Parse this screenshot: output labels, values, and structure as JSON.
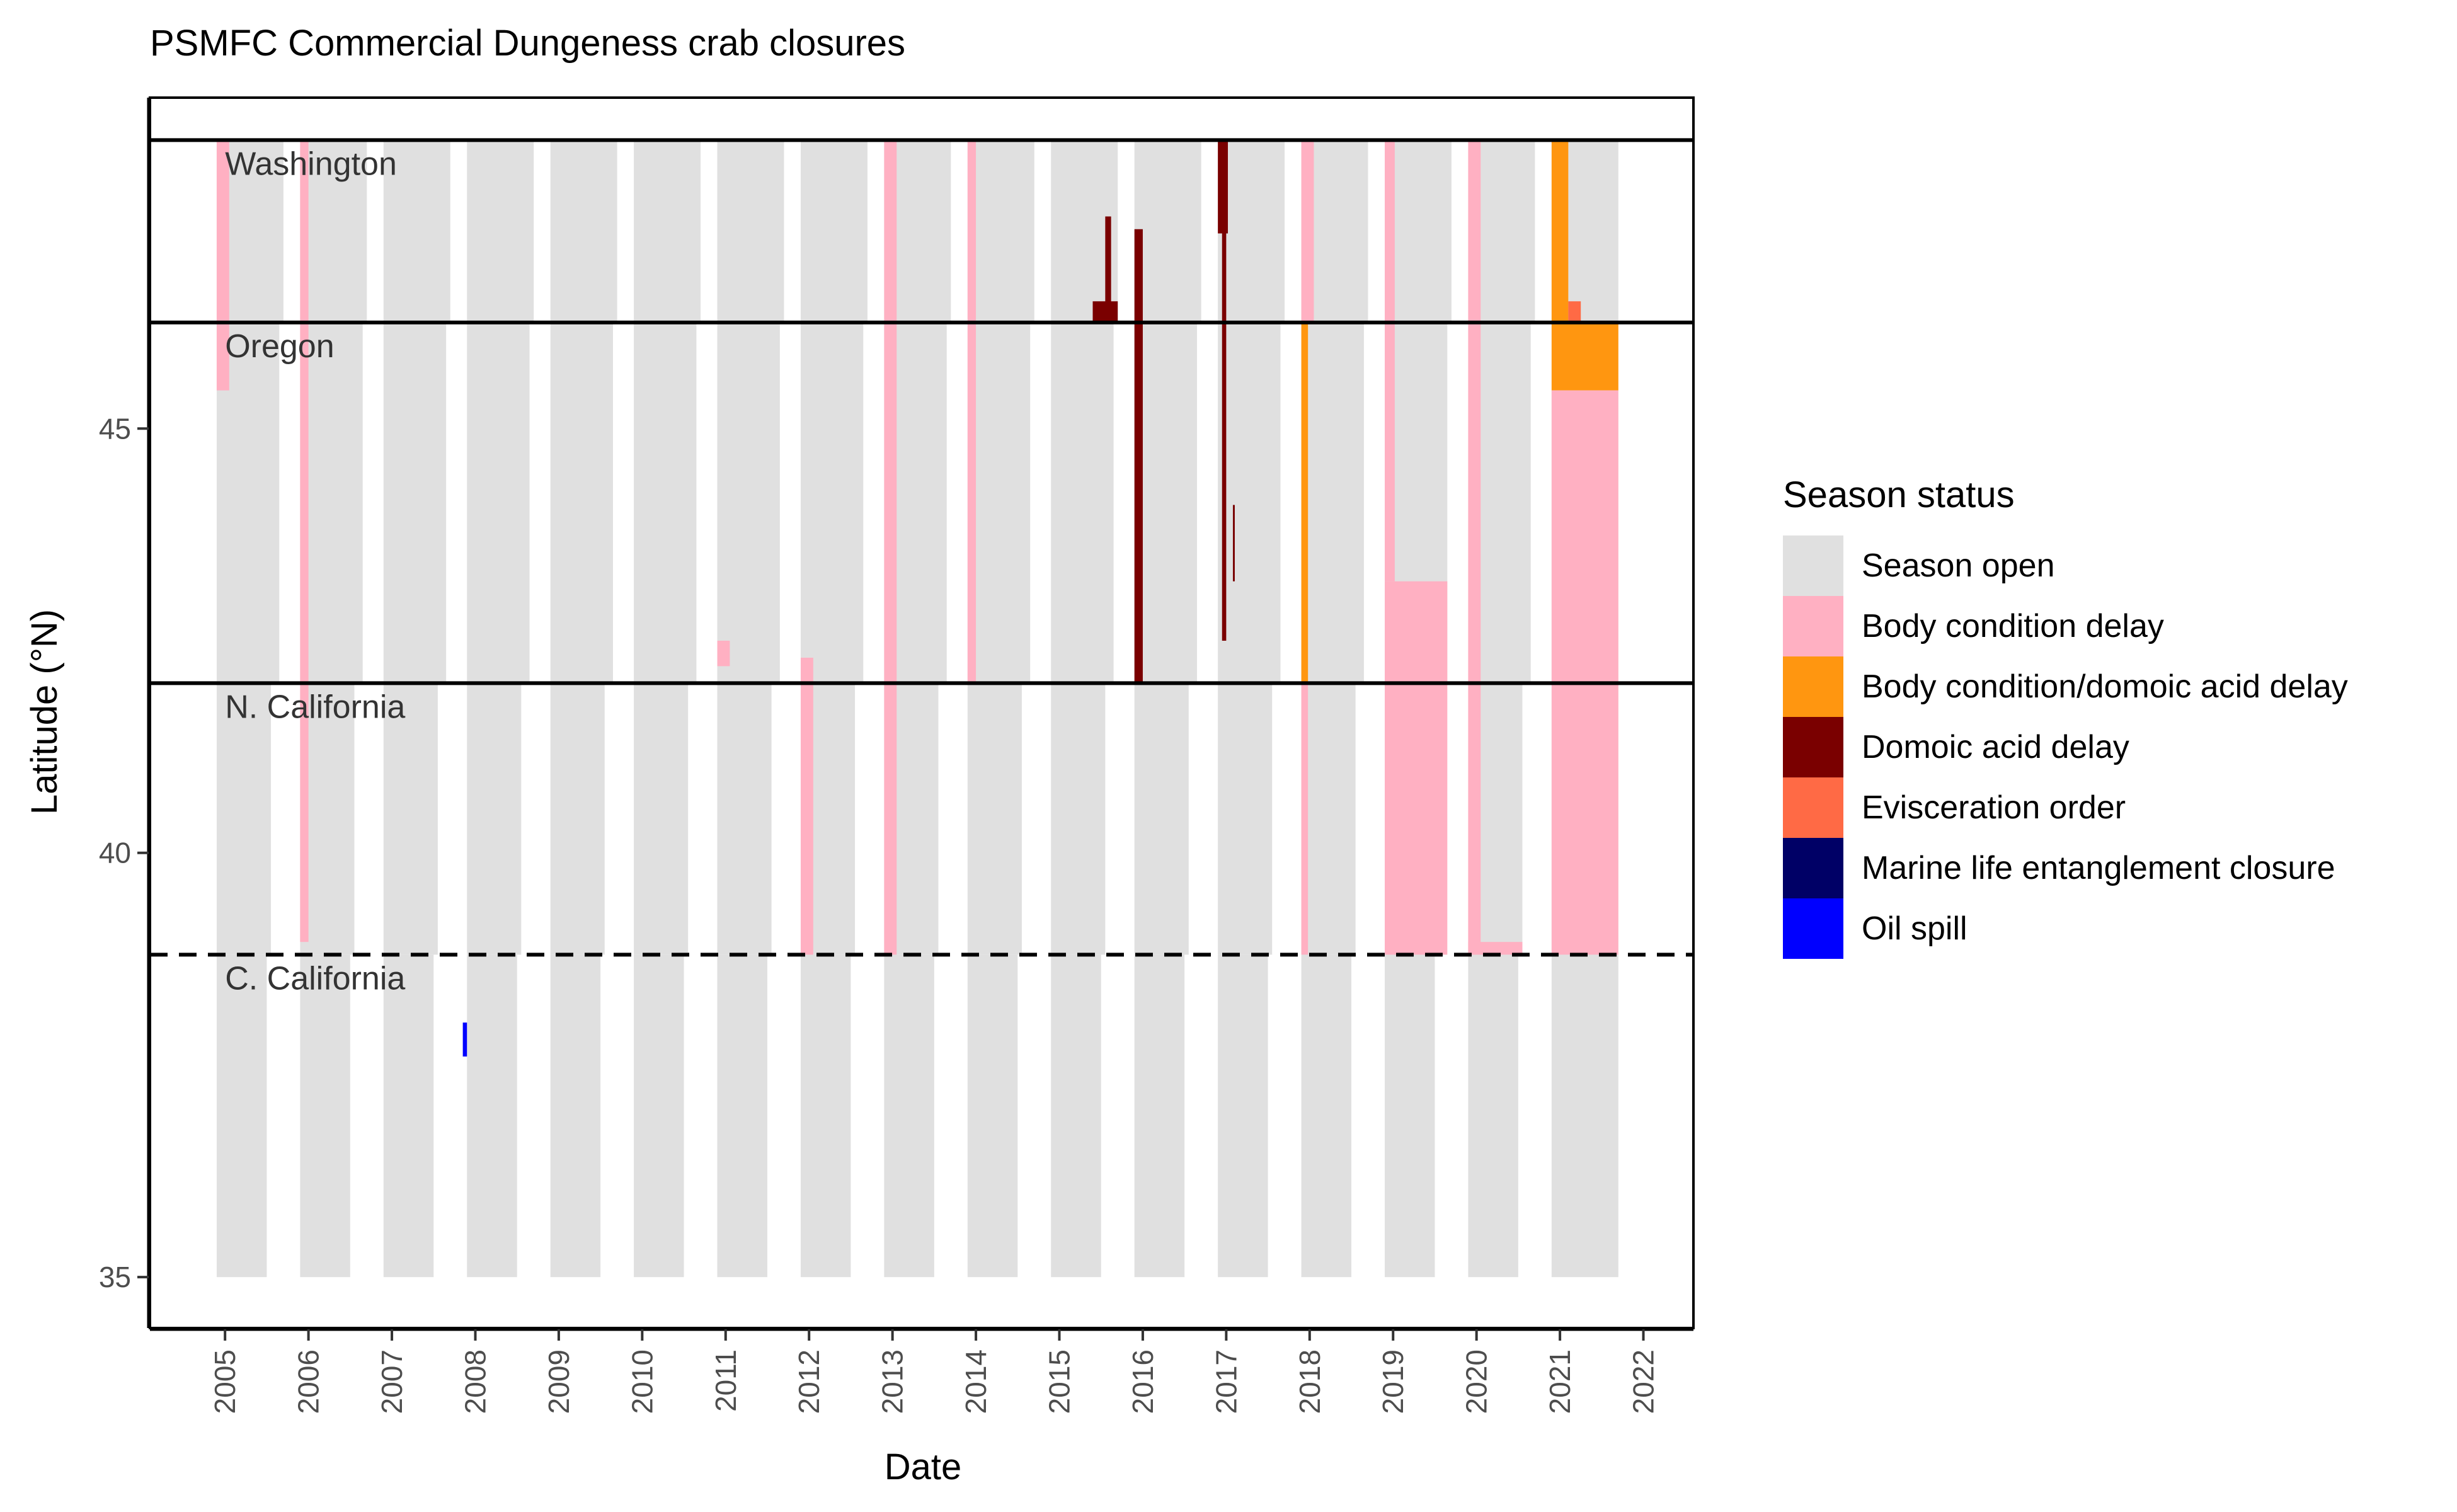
{
  "chart_data": {
    "type": "heatmap",
    "title": "PSMFC Commercial Dungeness crab closures",
    "xlabel": "Date",
    "ylabel": "Latitude (°N)",
    "x_unit": "year",
    "xlim": [
      2004.1,
      2022.6
    ],
    "ylim": [
      34.4,
      48.9
    ],
    "x_ticks": [
      "2005",
      "2006",
      "2007",
      "2008",
      "2009",
      "2010",
      "2011",
      "2012",
      "2013",
      "2014",
      "2015",
      "2016",
      "2017",
      "2018",
      "2019",
      "2020",
      "2021",
      "2022"
    ],
    "y_ticks": [
      "35",
      "40",
      "45"
    ],
    "legend": {
      "title": "Season status",
      "position": "right",
      "entries": [
        {
          "label": "Season open",
          "color": "#E0E0E0"
        },
        {
          "label": "Body condition delay",
          "color": "#FFB0C2"
        },
        {
          "label": "Body condition/domoic acid delay",
          "color": "#FF9610"
        },
        {
          "label": "Domoic acid delay",
          "color": "#7A0000"
        },
        {
          "label": "Evisceration order",
          "color": "#FF6A45"
        },
        {
          "label": "Marine life entanglement closure",
          "color": "#000066"
        },
        {
          "label": "Oil spill",
          "color": "#0000FF"
        }
      ]
    },
    "regions": [
      {
        "label": "Washington",
        "lat": 48.4,
        "line": "solid"
      },
      {
        "label": "Oregon",
        "lat": 46.25,
        "line": "solid"
      },
      {
        "label": "N. California",
        "lat": 42.0,
        "line": "solid"
      },
      {
        "label": "C. California",
        "lat": 38.8,
        "line": "dashed"
      }
    ],
    "open_seasons": [
      {
        "start": 2004.9,
        "end": 2005.7,
        "lat_min": 46.25,
        "lat_max": 48.4
      },
      {
        "start": 2004.9,
        "end": 2005.65,
        "lat_min": 42.0,
        "lat_max": 46.25
      },
      {
        "start": 2004.9,
        "end": 2005.55,
        "lat_min": 38.8,
        "lat_max": 42.0
      },
      {
        "start": 2004.9,
        "end": 2005.5,
        "lat_min": 35.0,
        "lat_max": 38.8
      },
      {
        "start": 2005.9,
        "end": 2006.7,
        "lat_min": 46.25,
        "lat_max": 48.4
      },
      {
        "start": 2005.9,
        "end": 2006.65,
        "lat_min": 42.0,
        "lat_max": 46.25
      },
      {
        "start": 2005.9,
        "end": 2006.55,
        "lat_min": 38.8,
        "lat_max": 42.0
      },
      {
        "start": 2005.9,
        "end": 2006.5,
        "lat_min": 35.0,
        "lat_max": 38.8
      },
      {
        "start": 2006.9,
        "end": 2007.7,
        "lat_min": 46.25,
        "lat_max": 48.4
      },
      {
        "start": 2006.9,
        "end": 2007.65,
        "lat_min": 42.0,
        "lat_max": 46.25
      },
      {
        "start": 2006.9,
        "end": 2007.55,
        "lat_min": 38.8,
        "lat_max": 42.0
      },
      {
        "start": 2006.9,
        "end": 2007.5,
        "lat_min": 35.0,
        "lat_max": 38.8
      },
      {
        "start": 2007.9,
        "end": 2008.7,
        "lat_min": 46.25,
        "lat_max": 48.4
      },
      {
        "start": 2007.9,
        "end": 2008.65,
        "lat_min": 42.0,
        "lat_max": 46.25
      },
      {
        "start": 2007.9,
        "end": 2008.55,
        "lat_min": 38.8,
        "lat_max": 42.0
      },
      {
        "start": 2007.9,
        "end": 2008.5,
        "lat_min": 35.0,
        "lat_max": 38.8
      },
      {
        "start": 2008.9,
        "end": 2009.7,
        "lat_min": 46.25,
        "lat_max": 48.4
      },
      {
        "start": 2008.9,
        "end": 2009.65,
        "lat_min": 42.0,
        "lat_max": 46.25
      },
      {
        "start": 2008.9,
        "end": 2009.55,
        "lat_min": 38.8,
        "lat_max": 42.0
      },
      {
        "start": 2008.9,
        "end": 2009.5,
        "lat_min": 35.0,
        "lat_max": 38.8
      },
      {
        "start": 2009.9,
        "end": 2010.7,
        "lat_min": 46.25,
        "lat_max": 48.4
      },
      {
        "start": 2009.9,
        "end": 2010.65,
        "lat_min": 42.0,
        "lat_max": 46.25
      },
      {
        "start": 2009.9,
        "end": 2010.55,
        "lat_min": 38.8,
        "lat_max": 42.0
      },
      {
        "start": 2009.9,
        "end": 2010.5,
        "lat_min": 35.0,
        "lat_max": 38.8
      },
      {
        "start": 2010.9,
        "end": 2011.7,
        "lat_min": 46.25,
        "lat_max": 48.4
      },
      {
        "start": 2010.9,
        "end": 2011.65,
        "lat_min": 42.0,
        "lat_max": 46.25
      },
      {
        "start": 2010.9,
        "end": 2011.55,
        "lat_min": 38.8,
        "lat_max": 42.0
      },
      {
        "start": 2010.9,
        "end": 2011.5,
        "lat_min": 35.0,
        "lat_max": 38.8
      },
      {
        "start": 2011.9,
        "end": 2012.7,
        "lat_min": 46.25,
        "lat_max": 48.4
      },
      {
        "start": 2011.9,
        "end": 2012.65,
        "lat_min": 42.0,
        "lat_max": 46.25
      },
      {
        "start": 2011.9,
        "end": 2012.55,
        "lat_min": 38.8,
        "lat_max": 42.0
      },
      {
        "start": 2011.9,
        "end": 2012.5,
        "lat_min": 35.0,
        "lat_max": 38.8
      },
      {
        "start": 2012.9,
        "end": 2013.7,
        "lat_min": 46.25,
        "lat_max": 48.4
      },
      {
        "start": 2012.9,
        "end": 2013.65,
        "lat_min": 42.0,
        "lat_max": 46.25
      },
      {
        "start": 2012.9,
        "end": 2013.55,
        "lat_min": 38.8,
        "lat_max": 42.0
      },
      {
        "start": 2012.9,
        "end": 2013.5,
        "lat_min": 35.0,
        "lat_max": 38.8
      },
      {
        "start": 2013.9,
        "end": 2014.7,
        "lat_min": 46.25,
        "lat_max": 48.4
      },
      {
        "start": 2013.9,
        "end": 2014.65,
        "lat_min": 42.0,
        "lat_max": 46.25
      },
      {
        "start": 2013.9,
        "end": 2014.55,
        "lat_min": 38.8,
        "lat_max": 42.0
      },
      {
        "start": 2013.9,
        "end": 2014.5,
        "lat_min": 35.0,
        "lat_max": 38.8
      },
      {
        "start": 2014.9,
        "end": 2015.7,
        "lat_min": 46.25,
        "lat_max": 48.4
      },
      {
        "start": 2014.9,
        "end": 2015.65,
        "lat_min": 42.0,
        "lat_max": 46.25
      },
      {
        "start": 2014.9,
        "end": 2015.55,
        "lat_min": 38.8,
        "lat_max": 42.0
      },
      {
        "start": 2014.9,
        "end": 2015.5,
        "lat_min": 35.0,
        "lat_max": 38.8
      },
      {
        "start": 2015.9,
        "end": 2016.7,
        "lat_min": 46.25,
        "lat_max": 48.4
      },
      {
        "start": 2015.9,
        "end": 2016.65,
        "lat_min": 42.0,
        "lat_max": 46.25
      },
      {
        "start": 2015.9,
        "end": 2016.55,
        "lat_min": 38.8,
        "lat_max": 42.0
      },
      {
        "start": 2015.9,
        "end": 2016.5,
        "lat_min": 35.0,
        "lat_max": 38.8
      },
      {
        "start": 2016.9,
        "end": 2017.7,
        "lat_min": 46.25,
        "lat_max": 48.4
      },
      {
        "start": 2016.9,
        "end": 2017.65,
        "lat_min": 42.0,
        "lat_max": 46.25
      },
      {
        "start": 2016.9,
        "end": 2017.55,
        "lat_min": 38.8,
        "lat_max": 42.0
      },
      {
        "start": 2016.9,
        "end": 2017.5,
        "lat_min": 35.0,
        "lat_max": 38.8
      },
      {
        "start": 2017.9,
        "end": 2018.7,
        "lat_min": 46.25,
        "lat_max": 48.4
      },
      {
        "start": 2017.9,
        "end": 2018.65,
        "lat_min": 42.0,
        "lat_max": 46.25
      },
      {
        "start": 2017.9,
        "end": 2018.55,
        "lat_min": 38.8,
        "lat_max": 42.0
      },
      {
        "start": 2017.9,
        "end": 2018.5,
        "lat_min": 35.0,
        "lat_max": 38.8
      },
      {
        "start": 2018.9,
        "end": 2019.7,
        "lat_min": 46.25,
        "lat_max": 48.4
      },
      {
        "start": 2018.9,
        "end": 2019.65,
        "lat_min": 42.0,
        "lat_max": 46.25
      },
      {
        "start": 2018.9,
        "end": 2019.55,
        "lat_min": 38.8,
        "lat_max": 42.0
      },
      {
        "start": 2018.9,
        "end": 2019.5,
        "lat_min": 35.0,
        "lat_max": 38.8
      },
      {
        "start": 2019.9,
        "end": 2020.7,
        "lat_min": 46.25,
        "lat_max": 48.4
      },
      {
        "start": 2019.9,
        "end": 2020.65,
        "lat_min": 42.0,
        "lat_max": 46.25
      },
      {
        "start": 2019.9,
        "end": 2020.55,
        "lat_min": 38.8,
        "lat_max": 42.0
      },
      {
        "start": 2019.9,
        "end": 2020.5,
        "lat_min": 35.0,
        "lat_max": 38.8
      },
      {
        "start": 2020.9,
        "end": 2021.7,
        "lat_min": 46.25,
        "lat_max": 48.4
      },
      {
        "start": 2020.9,
        "end": 2021.7,
        "lat_min": 42.0,
        "lat_max": 46.25
      },
      {
        "start": 2020.9,
        "end": 2021.7,
        "lat_min": 38.8,
        "lat_max": 42.0
      },
      {
        "start": 2020.9,
        "end": 2021.7,
        "lat_min": 35.0,
        "lat_max": 38.8
      }
    ],
    "closures": [
      {
        "status": "Body condition delay",
        "start": 2004.9,
        "end": 2005.05,
        "lat_min": 45.45,
        "lat_max": 48.4
      },
      {
        "status": "Body condition delay",
        "start": 2005.9,
        "end": 2006.0,
        "lat_min": 38.95,
        "lat_max": 48.4
      },
      {
        "status": "Body condition delay",
        "start": 2010.9,
        "end": 2011.05,
        "lat_min": 42.2,
        "lat_max": 42.5
      },
      {
        "status": "Body condition delay",
        "start": 2011.9,
        "end": 2012.05,
        "lat_min": 38.8,
        "lat_max": 42.3
      },
      {
        "status": "Body condition delay",
        "start": 2012.9,
        "end": 2013.05,
        "lat_min": 38.8,
        "lat_max": 48.4
      },
      {
        "status": "Body condition delay",
        "start": 2013.9,
        "end": 2014.0,
        "lat_min": 42.0,
        "lat_max": 48.4
      },
      {
        "status": "Domoic acid delay",
        "start": 2015.4,
        "end": 2015.7,
        "lat_min": 46.25,
        "lat_max": 46.5
      },
      {
        "status": "Domoic acid delay",
        "start": 2015.55,
        "end": 2015.62,
        "lat_min": 46.25,
        "lat_max": 47.5
      },
      {
        "status": "Domoic acid delay",
        "start": 2015.9,
        "end": 2016.0,
        "lat_min": 42.0,
        "lat_max": 47.35
      },
      {
        "status": "Domoic acid delay",
        "start": 2016.9,
        "end": 2017.02,
        "lat_min": 47.3,
        "lat_max": 48.4
      },
      {
        "status": "Domoic acid delay",
        "start": 2016.95,
        "end": 2017.0,
        "lat_min": 42.5,
        "lat_max": 47.3
      },
      {
        "status": "Domoic acid delay",
        "start": 2017.08,
        "end": 2017.1,
        "lat_min": 43.2,
        "lat_max": 44.1
      },
      {
        "status": "Body condition delay",
        "start": 2017.9,
        "end": 2018.05,
        "lat_min": 46.25,
        "lat_max": 48.4
      },
      {
        "status": "Body condition/domoic acid delay",
        "start": 2017.9,
        "end": 2017.98,
        "lat_min": 42.0,
        "lat_max": 46.25
      },
      {
        "status": "Body condition delay",
        "start": 2017.9,
        "end": 2017.98,
        "lat_min": 38.8,
        "lat_max": 42.0
      },
      {
        "status": "Body condition delay",
        "start": 2018.9,
        "end": 2019.02,
        "lat_min": 43.2,
        "lat_max": 48.4
      },
      {
        "status": "Body condition delay",
        "start": 2018.9,
        "end": 2019.65,
        "lat_min": 38.8,
        "lat_max": 43.2
      },
      {
        "status": "Body condition delay",
        "start": 2019.9,
        "end": 2020.05,
        "lat_min": 38.8,
        "lat_max": 48.4
      },
      {
        "status": "Body condition delay",
        "start": 2019.9,
        "end": 2020.55,
        "lat_min": 38.8,
        "lat_max": 38.95
      },
      {
        "status": "Body condition/domoic acid delay",
        "start": 2020.9,
        "end": 2021.1,
        "lat_min": 46.25,
        "lat_max": 48.4
      },
      {
        "status": "Evisceration order",
        "start": 2021.1,
        "end": 2021.25,
        "lat_min": 46.25,
        "lat_max": 46.5
      },
      {
        "status": "Body condition/domoic acid delay",
        "start": 2020.9,
        "end": 2021.7,
        "lat_min": 45.45,
        "lat_max": 46.25
      },
      {
        "status": "Body condition delay",
        "start": 2020.9,
        "end": 2021.7,
        "lat_min": 38.8,
        "lat_max": 45.45
      },
      {
        "status": "Oil spill",
        "start": 2007.85,
        "end": 2007.9,
        "lat_min": 37.6,
        "lat_max": 38.0
      }
    ]
  }
}
